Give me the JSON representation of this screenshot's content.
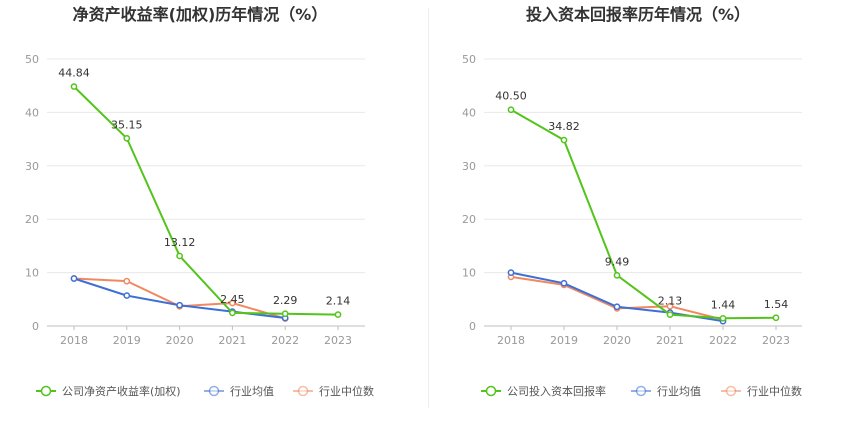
{
  "chart_data": [
    {
      "type": "line",
      "title": "净资产收益率(加权)历年情况（%）",
      "categories": [
        "2018",
        "2019",
        "2020",
        "2021",
        "2022",
        "2023"
      ],
      "ylim": [
        0,
        50
      ],
      "yticks": [
        0,
        10,
        20,
        30,
        40,
        50
      ],
      "grid": true,
      "legend_position": "bottom-left",
      "series": [
        {
          "name": "公司净资产收益率(加权)",
          "color": "#52c41a",
          "values": [
            44.84,
            35.15,
            13.12,
            2.45,
            2.29,
            2.14
          ],
          "labels": [
            "44.84",
            "35.15",
            "13.12",
            "2.45",
            "2.29",
            "2.14"
          ]
        },
        {
          "name": "行业均值",
          "color": "#3d6fd6",
          "values": [
            8.9,
            5.7,
            3.9,
            2.7,
            1.5,
            null
          ]
        },
        {
          "name": "行业中位数",
          "color": "#f0895f",
          "values": [
            8.9,
            8.4,
            3.7,
            4.3,
            1.4,
            null
          ]
        }
      ]
    },
    {
      "type": "line",
      "title": "投入资本回报率历年情况（%）",
      "categories": [
        "2018",
        "2019",
        "2020",
        "2021",
        "2022",
        "2023"
      ],
      "ylim": [
        0,
        50
      ],
      "yticks": [
        0,
        10,
        20,
        30,
        40,
        50
      ],
      "grid": true,
      "legend_position": "bottom-left",
      "series": [
        {
          "name": "公司投入资本回报率",
          "color": "#52c41a",
          "values": [
            40.5,
            34.82,
            9.49,
            2.13,
            1.44,
            1.54
          ],
          "labels": [
            "40.50",
            "34.82",
            "9.49",
            "2.13",
            "1.44",
            "1.54"
          ]
        },
        {
          "name": "行业均值",
          "color": "#3d6fd6",
          "values": [
            10.0,
            8.0,
            3.6,
            2.5,
            0.9,
            null
          ]
        },
        {
          "name": "行业中位数",
          "color": "#f0895f",
          "values": [
            9.2,
            7.7,
            3.3,
            3.7,
            1.2,
            null
          ]
        }
      ]
    }
  ]
}
